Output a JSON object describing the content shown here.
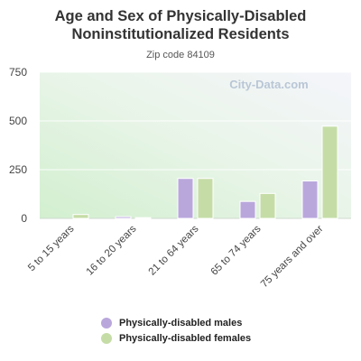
{
  "chart_data": {
    "type": "bar",
    "title_line1": "Age and Sex of Physically-Disabled",
    "title_line2": "Noninstitutionalized Residents",
    "subtitle": "Zip code 84109",
    "watermark": "City-Data.com",
    "categories": [
      "5 to 15 years",
      "16 to 20 years",
      "21 to 64 years",
      "65 to 74 years",
      "75 years and over"
    ],
    "series": [
      {
        "name": "Physically-disabled males",
        "color": "#b9a7dc",
        "values": [
          0,
          9,
          205,
          87,
          192
        ]
      },
      {
        "name": "Physically-disabled females",
        "color": "#c5dca7",
        "values": [
          20,
          4,
          205,
          128,
          473
        ]
      }
    ],
    "ylim": [
      0,
      750
    ],
    "yticks": [
      0,
      250,
      500,
      750
    ],
    "grid": true,
    "legend_position": "bottom"
  }
}
